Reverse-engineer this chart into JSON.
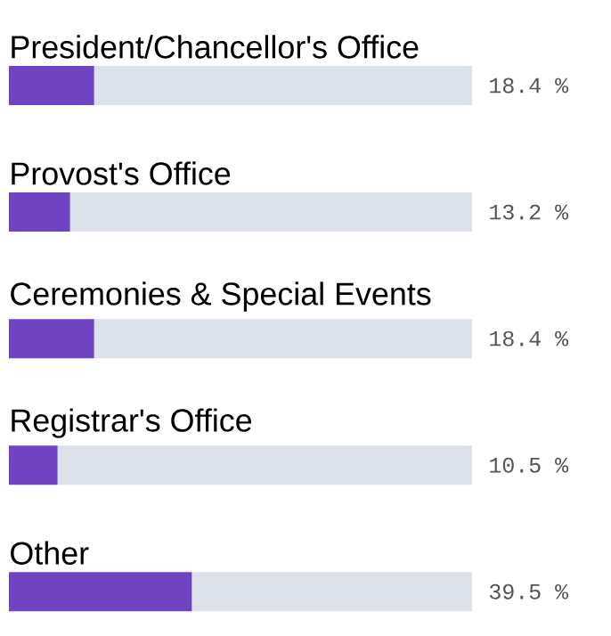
{
  "chart_data": {
    "type": "bar",
    "orientation": "horizontal",
    "stacked": true,
    "categories": [
      "President/Chancellor's Office",
      "Provost's Office",
      "Ceremonies & Special Events",
      "Registrar's Office",
      "Other"
    ],
    "series": [
      {
        "color": "#6f44c2",
        "values": [
          18.4,
          13.2,
          18.4,
          10.5,
          39.5
        ],
        "value_labels": [
          "18.4 %",
          "13.2 %",
          "18.4 %",
          "10.5 %",
          "39.5 %"
        ]
      },
      {
        "color": "#dde2ea",
        "values": [
          81.6,
          86.8,
          81.6,
          89.5,
          60.5
        ]
      }
    ],
    "xlim": [
      0,
      100
    ],
    "tick_labels": false
  }
}
